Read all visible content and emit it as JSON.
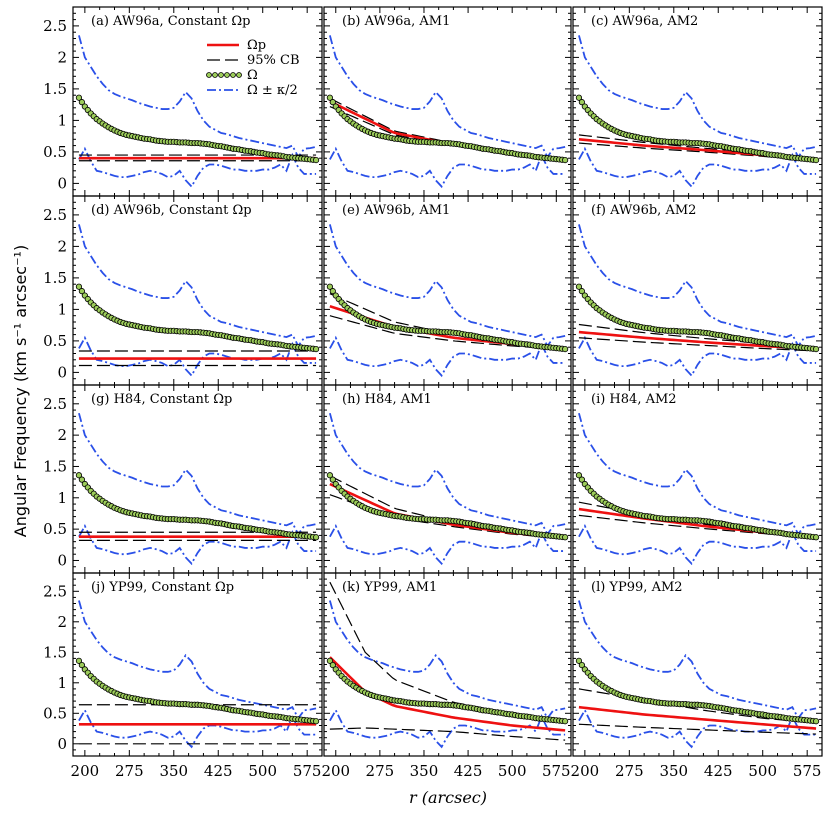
{
  "chart_data": {
    "type": "line",
    "grid": "4x3 panels",
    "xlabel": "r (arcsec)",
    "ylabel": "Angular Frequency (km s⁻¹ arcsec⁻¹)",
    "xlim": [
      180,
      600
    ],
    "ylim": [
      -0.2,
      2.8
    ],
    "xticks": [
      200,
      275,
      350,
      425,
      500,
      575
    ],
    "yticks": [
      0,
      0.5,
      1,
      1.5,
      2,
      2.5
    ],
    "xtick_labels": [
      "200",
      "275",
      "350",
      "425",
      "500",
      "575"
    ],
    "ytick_labels": [
      "0",
      "0.5",
      "1",
      "1.5",
      "2",
      "2.5"
    ],
    "legend": {
      "placement": "top-right of panel (a)",
      "entries": [
        "Ωp",
        "95% CB",
        "Ω",
        "Ω ± κ/2"
      ]
    },
    "colors": {
      "omega_p": "#ee1111",
      "cb": "#000000",
      "omega_fill": "#9ccc5a",
      "omega_edge": "#000000",
      "kappa": "#2a50e8"
    },
    "omega": {
      "x": [
        190,
        200,
        210,
        220,
        230,
        240,
        250,
        260,
        270,
        280,
        290,
        300,
        310,
        320,
        330,
        340,
        350,
        360,
        370,
        380,
        390,
        400,
        410,
        420,
        430,
        440,
        450,
        460,
        470,
        480,
        490,
        500,
        510,
        520,
        530,
        540,
        550,
        560,
        570,
        580,
        590
      ],
      "y": [
        1.36,
        1.22,
        1.11,
        1.02,
        0.95,
        0.89,
        0.84,
        0.8,
        0.77,
        0.75,
        0.73,
        0.71,
        0.7,
        0.68,
        0.67,
        0.66,
        0.66,
        0.65,
        0.65,
        0.64,
        0.64,
        0.63,
        0.62,
        0.6,
        0.59,
        0.57,
        0.55,
        0.54,
        0.52,
        0.51,
        0.49,
        0.48,
        0.46,
        0.45,
        0.44,
        0.42,
        0.41,
        0.4,
        0.39,
        0.38,
        0.37
      ]
    },
    "kappa_upper": {
      "x": [
        190,
        200,
        210,
        220,
        230,
        240,
        250,
        260,
        270,
        280,
        290,
        300,
        310,
        320,
        330,
        340,
        350,
        360,
        370,
        380,
        390,
        400,
        410,
        420,
        430,
        440,
        450,
        460,
        470,
        480,
        490,
        500,
        510,
        520,
        530,
        540,
        550,
        560,
        570,
        580,
        590
      ],
      "y": [
        2.35,
        2.0,
        1.85,
        1.7,
        1.58,
        1.48,
        1.42,
        1.38,
        1.35,
        1.32,
        1.28,
        1.25,
        1.22,
        1.2,
        1.18,
        1.18,
        1.2,
        1.3,
        1.45,
        1.35,
        1.15,
        1.0,
        0.9,
        0.85,
        0.8,
        0.78,
        0.75,
        0.72,
        0.7,
        0.68,
        0.66,
        0.64,
        0.62,
        0.6,
        0.58,
        0.56,
        0.6,
        0.42,
        0.55,
        0.56,
        0.58
      ]
    },
    "kappa_lower": {
      "x": [
        190,
        200,
        210,
        220,
        230,
        240,
        250,
        260,
        270,
        280,
        290,
        300,
        310,
        320,
        330,
        340,
        350,
        360,
        370,
        380,
        390,
        400,
        410,
        420,
        430,
        440,
        450,
        460,
        470,
        480,
        490,
        500,
        510,
        520,
        530,
        540,
        550,
        560,
        570,
        580,
        590
      ],
      "y": [
        0.38,
        0.55,
        0.35,
        0.2,
        0.18,
        0.15,
        0.12,
        0.1,
        0.1,
        0.12,
        0.14,
        0.18,
        0.2,
        0.18,
        0.15,
        0.1,
        0.12,
        0.2,
        0.05,
        -0.05,
        0.12,
        0.25,
        0.3,
        0.3,
        0.28,
        0.25,
        0.22,
        0.22,
        0.2,
        0.2,
        0.2,
        0.22,
        0.22,
        0.25,
        0.3,
        0.2,
        0.45,
        0.25,
        0.15,
        0.15,
        0.15
      ]
    },
    "panels": [
      {
        "label": "(a) AW96a, Constant Ωp",
        "omega_p": {
          "x": [
            190,
            590
          ],
          "y": [
            0.4,
            0.4
          ]
        },
        "cb_upper": {
          "x": [
            190,
            590
          ],
          "y": [
            0.45,
            0.45
          ]
        },
        "cb_lower": {
          "x": [
            190,
            590
          ],
          "y": [
            0.36,
            0.36
          ]
        }
      },
      {
        "label": "(b) AW96a, AM1",
        "omega_p": {
          "x": [
            190,
            300,
            400,
            500,
            590
          ],
          "y": [
            1.3,
            0.8,
            0.62,
            0.48,
            0.38
          ]
        },
        "cb_upper": {
          "x": [
            190,
            300,
            400,
            500,
            590
          ],
          "y": [
            1.35,
            0.83,
            0.64,
            0.5,
            0.4
          ]
        },
        "cb_lower": {
          "x": [
            190,
            300,
            400,
            500,
            590
          ],
          "y": [
            1.22,
            0.77,
            0.6,
            0.46,
            0.36
          ]
        }
      },
      {
        "label": "(c) AW96a, AM2",
        "omega_p": {
          "x": [
            190,
            300,
            400,
            500,
            590
          ],
          "y": [
            0.7,
            0.6,
            0.53,
            0.45,
            0.38
          ]
        },
        "cb_upper": {
          "x": [
            190,
            300,
            400,
            500,
            590
          ],
          "y": [
            0.77,
            0.65,
            0.56,
            0.48,
            0.4
          ]
        },
        "cb_lower": {
          "x": [
            190,
            300,
            400,
            500,
            590
          ],
          "y": [
            0.64,
            0.56,
            0.5,
            0.43,
            0.36
          ]
        }
      },
      {
        "label": "(d) AW96b, Constant Ωp",
        "omega_p": {
          "x": [
            190,
            590
          ],
          "y": [
            0.22,
            0.22
          ]
        },
        "cb_upper": {
          "x": [
            190,
            590
          ],
          "y": [
            0.34,
            0.34
          ]
        },
        "cb_lower": {
          "x": [
            190,
            590
          ],
          "y": [
            0.11,
            0.11
          ]
        }
      },
      {
        "label": "(e) AW96b, AM1",
        "omega_p": {
          "x": [
            190,
            300,
            400,
            500,
            590
          ],
          "y": [
            1.05,
            0.72,
            0.55,
            0.45,
            0.38
          ]
        },
        "cb_upper": {
          "x": [
            190,
            300,
            400,
            500,
            590
          ],
          "y": [
            1.25,
            0.8,
            0.6,
            0.47,
            0.4
          ]
        },
        "cb_lower": {
          "x": [
            190,
            300,
            400,
            500,
            590
          ],
          "y": [
            0.9,
            0.62,
            0.5,
            0.42,
            0.36
          ]
        }
      },
      {
        "label": "(f) AW96b, AM2",
        "omega_p": {
          "x": [
            190,
            300,
            400,
            500,
            590
          ],
          "y": [
            0.64,
            0.55,
            0.48,
            0.42,
            0.37
          ]
        },
        "cb_upper": {
          "x": [
            190,
            300,
            400,
            500,
            590
          ],
          "y": [
            0.76,
            0.63,
            0.54,
            0.46,
            0.4
          ]
        },
        "cb_lower": {
          "x": [
            190,
            300,
            400,
            500,
            590
          ],
          "y": [
            0.55,
            0.48,
            0.43,
            0.38,
            0.34
          ]
        }
      },
      {
        "label": "(g) H84, Constant Ωp",
        "omega_p": {
          "x": [
            190,
            590
          ],
          "y": [
            0.38,
            0.38
          ]
        },
        "cb_upper": {
          "x": [
            190,
            590
          ],
          "y": [
            0.45,
            0.45
          ]
        },
        "cb_lower": {
          "x": [
            190,
            590
          ],
          "y": [
            0.32,
            0.32
          ]
        }
      },
      {
        "label": "(h) H84, AM1",
        "omega_p": {
          "x": [
            190,
            300,
            400,
            500,
            590
          ],
          "y": [
            1.22,
            0.75,
            0.57,
            0.44,
            0.36
          ]
        },
        "cb_upper": {
          "x": [
            190,
            300,
            400,
            500,
            590
          ],
          "y": [
            1.35,
            0.83,
            0.6,
            0.46,
            0.37
          ]
        },
        "cb_lower": {
          "x": [
            190,
            300,
            400,
            500,
            590
          ],
          "y": [
            1.05,
            0.68,
            0.54,
            0.42,
            0.35
          ]
        }
      },
      {
        "label": "(i) H84, AM2",
        "omega_p": {
          "x": [
            190,
            300,
            400,
            500,
            590
          ],
          "y": [
            0.82,
            0.67,
            0.55,
            0.45,
            0.37
          ]
        },
        "cb_upper": {
          "x": [
            190,
            300,
            400,
            500,
            590
          ],
          "y": [
            0.93,
            0.73,
            0.58,
            0.46,
            0.37
          ]
        },
        "cb_lower": {
          "x": [
            190,
            300,
            400,
            500,
            590
          ],
          "y": [
            0.72,
            0.6,
            0.51,
            0.43,
            0.36
          ]
        }
      },
      {
        "label": "(j) YP99, Constant Ωp",
        "omega_p": {
          "x": [
            190,
            590
          ],
          "y": [
            0.32,
            0.32
          ]
        },
        "cb_upper": {
          "x": [
            190,
            590
          ],
          "y": [
            0.64,
            0.64
          ]
        },
        "cb_lower": {
          "x": [
            190,
            590
          ],
          "y": [
            0.0,
            0.0
          ]
        }
      },
      {
        "label": "(k) YP99, AM1",
        "omega_p": {
          "x": [
            190,
            250,
            300,
            400,
            500,
            590
          ],
          "y": [
            1.42,
            0.85,
            0.62,
            0.43,
            0.3,
            0.22
          ]
        },
        "cb_upper": {
          "x": [
            190,
            250,
            300,
            400,
            500,
            590
          ],
          "y": [
            2.65,
            1.5,
            1.05,
            0.68,
            0.5,
            0.38
          ]
        },
        "cb_lower": {
          "x": [
            190,
            250,
            300,
            400,
            500,
            590
          ],
          "y": [
            0.24,
            0.26,
            0.24,
            0.2,
            0.12,
            0.06
          ]
        }
      },
      {
        "label": "(l) YP99, AM2",
        "omega_p": {
          "x": [
            190,
            300,
            400,
            500,
            590
          ],
          "y": [
            0.6,
            0.48,
            0.4,
            0.32,
            0.25
          ]
        },
        "cb_upper": {
          "x": [
            190,
            300,
            400,
            500,
            590
          ],
          "y": [
            0.9,
            0.72,
            0.55,
            0.42,
            0.34
          ]
        },
        "cb_lower": {
          "x": [
            190,
            300,
            400,
            500,
            590
          ],
          "y": [
            0.32,
            0.27,
            0.23,
            0.19,
            0.16
          ]
        }
      }
    ]
  }
}
